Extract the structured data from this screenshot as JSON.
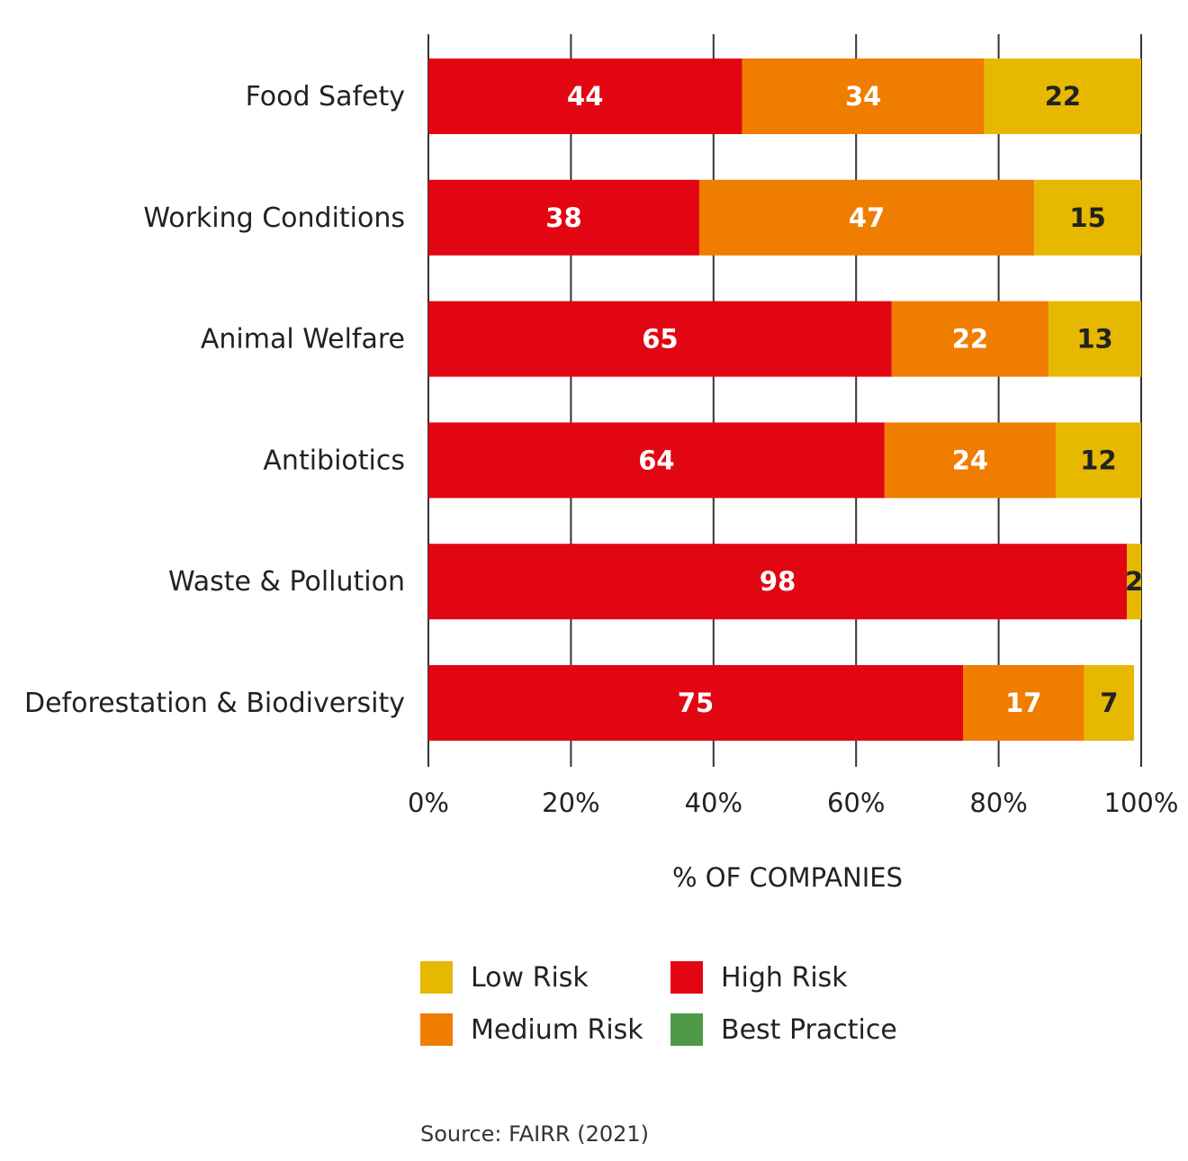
{
  "chart_data": {
    "type": "bar",
    "orientation": "horizontal",
    "stacked": true,
    "categories": [
      "Food Safety",
      "Working Conditions",
      "Animal Welfare",
      "Antibiotics",
      "Waste & Pollution",
      "Deforestation & Biodiversity"
    ],
    "series": [
      {
        "name": "High Risk",
        "color": "#e20613",
        "label_color": "#ffffff",
        "values": [
          44,
          38,
          65,
          64,
          98,
          75
        ]
      },
      {
        "name": "Medium Risk",
        "color": "#ef7d00",
        "label_color": "#ffffff",
        "values": [
          34,
          47,
          22,
          24,
          0,
          17
        ]
      },
      {
        "name": "Low Risk",
        "color": "#e6b800",
        "label_color": "#222222",
        "values": [
          22,
          15,
          13,
          12,
          2,
          7
        ]
      }
    ],
    "x_ticks": [
      "0%",
      "20%",
      "40%",
      "60%",
      "80%",
      "100%"
    ],
    "xlim": [
      0,
      100
    ],
    "xlabel": "% OF COMPANIES",
    "grid": true
  },
  "legend": {
    "items": [
      {
        "label": "Low Risk",
        "color": "#e6b800"
      },
      {
        "label": "High Risk",
        "color": "#e20613"
      },
      {
        "label": "Medium Risk",
        "color": "#ef7d00"
      },
      {
        "label": "Best Practice",
        "color": "#4e9a47"
      }
    ]
  },
  "source": "Source: FAIRR (2021)"
}
